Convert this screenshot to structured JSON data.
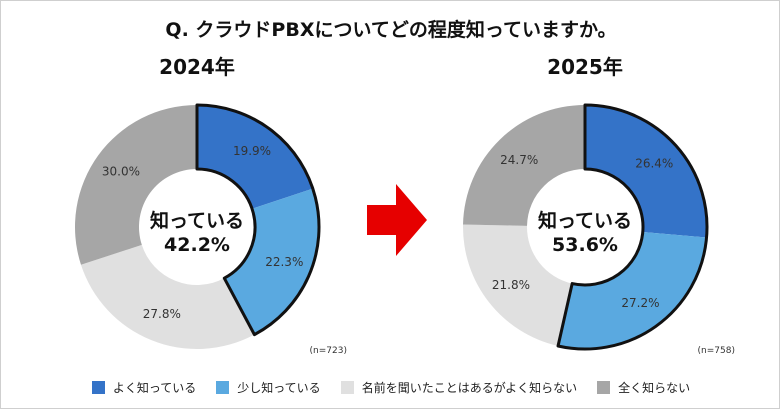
{
  "chart_data": [
    {
      "type": "pie",
      "title": "2024年",
      "center_label": "知っている",
      "center_value": "42.2%",
      "n": "(n=723)",
      "categories": [
        "よく知っている",
        "少し知っている",
        "名前を聞いたことはあるがよく知らない",
        "全く知らない"
      ],
      "values": [
        19.9,
        22.3,
        27.8,
        30.0
      ],
      "labels": [
        "19.9%",
        "22.3%",
        "27.8%",
        "30.0%"
      ]
    },
    {
      "type": "pie",
      "title": "2025年",
      "center_label": "知っている",
      "center_value": "53.6%",
      "n": "(n=758)",
      "categories": [
        "よく知っている",
        "少し知っている",
        "名前を聞いたことはあるがよく知らない",
        "全く知らない"
      ],
      "values": [
        26.4,
        27.2,
        21.8,
        24.7
      ],
      "labels": [
        "26.4%",
        "27.2%",
        "21.8%",
        "24.7%"
      ]
    }
  ],
  "title": "Q. クラウドPBXについてどの程度知っていますか。",
  "colors": [
    "#3473c8",
    "#5aa9e0",
    "#e0e0e0",
    "#a6a6a6"
  ],
  "arrow_color": "#e60000",
  "legend": [
    "よく知っている",
    "少し知っている",
    "名前を聞いたことはあるがよく知らない",
    "全く知らない"
  ]
}
